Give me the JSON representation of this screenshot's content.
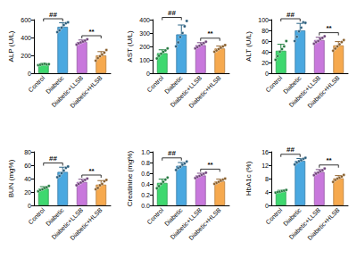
{
  "chart_data": [
    {
      "type": "bar",
      "y_label": "ALP (U/L)",
      "categories": [
        "Control",
        "Diabetic",
        "Diabetic+LLSB",
        "Diabetic+HLSB"
      ],
      "values": [
        100,
        520,
        350,
        200
      ],
      "errors": [
        10,
        45,
        22,
        42
      ],
      "points": [
        [
          90,
          95,
          100,
          105,
          98,
          102
        ],
        [
          460,
          480,
          510,
          540,
          560,
          570
        ],
        [
          320,
          335,
          345,
          355,
          365,
          380
        ],
        [
          140,
          170,
          190,
          210,
          230,
          260
        ]
      ],
      "colors": [
        "#3ed86f",
        "#4aa8e0",
        "#c878dc",
        "#f6a94e"
      ],
      "ylim": [
        0,
        600
      ],
      "yticks": [
        0,
        200,
        400,
        600
      ],
      "annotations": [
        {
          "from": "Control",
          "to": "Diabetic",
          "label": "##"
        },
        {
          "from": "Diabetic+LLSB",
          "to": "Diabetic+HLSB",
          "label": "**"
        }
      ]
    },
    {
      "type": "bar",
      "y_label": "AST (U/L)",
      "categories": [
        "Control",
        "Diabetic",
        "Diabetic+LLSB",
        "Diabetic+HLSB"
      ],
      "values": [
        150,
        290,
        210,
        185
      ],
      "errors": [
        25,
        70,
        18,
        18
      ],
      "points": [
        [
          110,
          130,
          145,
          160,
          170,
          185
        ],
        [
          200,
          230,
          270,
          300,
          350,
          390
        ],
        [
          185,
          195,
          205,
          215,
          225,
          235
        ],
        [
          160,
          170,
          180,
          190,
          200,
          210
        ]
      ],
      "colors": [
        "#3ed86f",
        "#4aa8e0",
        "#c878dc",
        "#f6a94e"
      ],
      "ylim": [
        0,
        400
      ],
      "yticks": [
        0,
        100,
        200,
        300,
        400
      ],
      "annotations": [
        {
          "from": "Control",
          "to": "Diabetic",
          "label": "##"
        },
        {
          "from": "Diabetic+LLSB",
          "to": "Diabetic+HLSB",
          "label": "**"
        }
      ]
    },
    {
      "type": "bar",
      "y_label": "ALT (U/L)",
      "categories": [
        "Control",
        "Diabetic",
        "Diabetic+LLSB",
        "Diabetic+HLSB"
      ],
      "values": [
        42,
        80,
        62,
        52
      ],
      "errors": [
        12,
        13,
        5,
        7
      ],
      "points": [
        [
          25,
          32,
          40,
          45,
          50,
          60
        ],
        [
          60,
          68,
          78,
          85,
          95,
          94
        ],
        [
          55,
          58,
          60,
          64,
          66,
          69
        ],
        [
          42,
          46,
          50,
          54,
          58,
          62
        ]
      ],
      "colors": [
        "#3ed86f",
        "#4aa8e0",
        "#c878dc",
        "#f6a94e"
      ],
      "ylim": [
        0,
        100
      ],
      "yticks": [
        0,
        20,
        40,
        60,
        80,
        100
      ],
      "annotations": [
        {
          "from": "Control",
          "to": "Diabetic",
          "label": "##"
        },
        {
          "from": "Diabetic+LLSB",
          "to": "Diabetic+HLSB",
          "label": "**"
        }
      ]
    },
    {
      "type": "bar",
      "y_label": "BUN (mg%)",
      "categories": [
        "Control",
        "Diabetic",
        "Diabetic+LLSB",
        "Diabetic+HLSB"
      ],
      "values": [
        25,
        50,
        35,
        31
      ],
      "errors": [
        3,
        7,
        4,
        6
      ],
      "points": [
        [
          21,
          23,
          24,
          26,
          27,
          29
        ],
        [
          42,
          44,
          48,
          52,
          56,
          58
        ],
        [
          30,
          32,
          34,
          36,
          38,
          40
        ],
        [
          24,
          26,
          30,
          32,
          36,
          38
        ]
      ],
      "colors": [
        "#3ed86f",
        "#4aa8e0",
        "#c878dc",
        "#f6a94e"
      ],
      "ylim": [
        0,
        80
      ],
      "yticks": [
        0,
        20,
        40,
        60,
        80
      ],
      "annotations": [
        {
          "from": "Control",
          "to": "Diabetic",
          "label": "##"
        },
        {
          "from": "Diabetic+LLSB",
          "to": "Diabetic+HLSB",
          "label": "**"
        }
      ]
    },
    {
      "type": "bar",
      "y_label": "Creatinine (mg%)",
      "categories": [
        "Control",
        "Diabetic",
        "Diabetic+LLSB",
        "Diabetic+HLSB"
      ],
      "values": [
        0.42,
        0.74,
        0.56,
        0.45
      ],
      "errors": [
        0.07,
        0.06,
        0.04,
        0.04
      ],
      "points": [
        [
          0.32,
          0.36,
          0.4,
          0.44,
          0.48,
          0.52
        ],
        [
          0.66,
          0.7,
          0.72,
          0.76,
          0.78,
          0.82
        ],
        [
          0.51,
          0.53,
          0.55,
          0.57,
          0.59,
          0.61
        ],
        [
          0.4,
          0.42,
          0.44,
          0.46,
          0.48,
          0.5
        ]
      ],
      "colors": [
        "#3ed86f",
        "#4aa8e0",
        "#c878dc",
        "#f6a94e"
      ],
      "ylim": [
        0,
        1
      ],
      "yticks": [
        {
          "value": 0,
          "label": "0.0"
        },
        {
          "value": 0.2,
          "label": "0.2"
        },
        {
          "value": 0.4,
          "label": "0.4"
        },
        {
          "value": 0.6,
          "label": "0.6"
        },
        {
          "value": 0.8,
          "label": "0.8"
        },
        {
          "value": 1,
          "label": "1.0"
        }
      ],
      "annotations": [
        {
          "from": "Control",
          "to": "Diabetic",
          "label": "##"
        },
        {
          "from": "Diabetic+LLSB",
          "to": "Diabetic+HLSB",
          "label": "**"
        }
      ]
    },
    {
      "type": "bar",
      "y_label": "HbA1c (%)",
      "categories": [
        "Control",
        "Diabetic",
        "Diabetic+LLSB",
        "Diabetic+HLSB"
      ],
      "values": [
        4.2,
        13.3,
        10,
        8.1
      ],
      "errors": [
        0.3,
        0.7,
        0.7,
        0.8
      ],
      "points": [
        [
          3.8,
          4,
          4.1,
          4.3,
          4.4,
          4.6
        ],
        [
          12.2,
          12.8,
          13.2,
          13.5,
          13.9,
          14.2
        ],
        [
          9,
          9.5,
          9.8,
          10.2,
          10.5,
          11
        ],
        [
          7,
          7.6,
          8,
          8.3,
          8.6,
          9.1
        ]
      ],
      "colors": [
        "#3ed86f",
        "#4aa8e0",
        "#c878dc",
        "#f6a94e"
      ],
      "ylim": [
        0,
        16
      ],
      "yticks": [
        0,
        4,
        8,
        12,
        16
      ],
      "annotations": [
        {
          "from": "Control",
          "to": "Diabetic",
          "label": "##"
        },
        {
          "from": "Diabetic+LLSB",
          "to": "Diabetic+HLSB",
          "label": "**"
        }
      ]
    }
  ]
}
